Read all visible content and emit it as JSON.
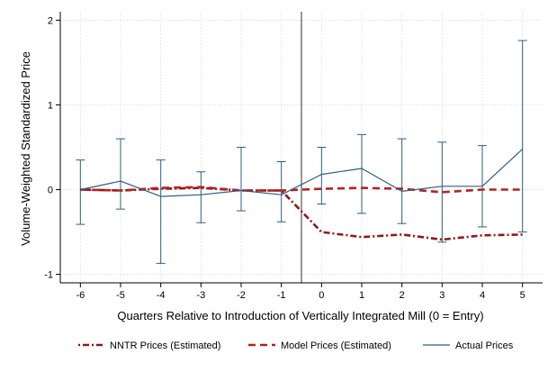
{
  "chart_data": {
    "type": "line",
    "xlabel": "Quarters Relative to Introduction of Vertically Integrated Mill (0 = Entry)",
    "ylabel": "Volume-Weighted Standardized Price",
    "xlim": [
      -6.5,
      5.5
    ],
    "ylim": [
      -1.1,
      2.1
    ],
    "x_ticks": [
      -6,
      -5,
      -4,
      -3,
      -2,
      -1,
      0,
      1,
      2,
      3,
      4,
      5
    ],
    "y_ticks": [
      -1,
      0,
      1,
      2
    ],
    "x_tick_labels": [
      "-6",
      "-5",
      "-4",
      "-3",
      "-2",
      "-1",
      "0",
      "1",
      "2",
      "3",
      "4",
      "5"
    ],
    "y_tick_labels": [
      "-1",
      "0",
      "1",
      "2"
    ],
    "grid": true,
    "vertical_line_x": -0.5,
    "legend_position": "bottom",
    "x": [
      -6,
      -5,
      -4,
      -3,
      -2,
      -1,
      0,
      1,
      2,
      3,
      4,
      5
    ],
    "series": [
      {
        "name": "NNTR Prices (Estimated)",
        "color": "#8b1a1a",
        "style": "dash-dot",
        "values": [
          0.0,
          -0.01,
          0.01,
          0.02,
          -0.01,
          -0.01,
          -0.5,
          -0.56,
          -0.53,
          -0.59,
          -0.54,
          -0.53
        ]
      },
      {
        "name": "Model Prices (Estimated)",
        "color": "#b22222",
        "style": "dash",
        "values": [
          0.0,
          -0.01,
          0.02,
          0.03,
          -0.01,
          -0.01,
          0.01,
          0.02,
          0.01,
          -0.03,
          0.0,
          0.0
        ]
      },
      {
        "name": "Actual Prices",
        "color": "#2c5f7d",
        "style": "solid",
        "values": [
          0.0,
          0.1,
          -0.08,
          -0.06,
          -0.01,
          -0.06,
          0.18,
          0.25,
          -0.02,
          0.04,
          0.04,
          0.48
        ],
        "error_low": [
          -0.41,
          -0.23,
          -0.87,
          -0.39,
          -0.25,
          -0.38,
          -0.17,
          -0.28,
          -0.4,
          -0.62,
          -0.44,
          -0.5
        ],
        "error_high": [
          0.35,
          0.6,
          0.35,
          0.21,
          0.5,
          0.33,
          0.5,
          0.65,
          0.6,
          0.56,
          0.52,
          1.76
        ]
      }
    ]
  }
}
